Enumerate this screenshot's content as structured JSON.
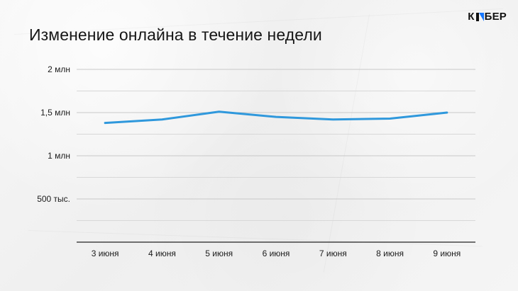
{
  "title": "Изменение онлайна в течение недели",
  "logo": {
    "text_before": "К",
    "text_after": "БЕР",
    "icon": "brand-mark-icon",
    "accent_color": "#1677ff"
  },
  "chart_data": {
    "type": "line",
    "title": "Изменение онлайна в течение недели",
    "categories": [
      "3 июня",
      "4 июня",
      "5 июня",
      "6 июня",
      "7 июня",
      "8 июня",
      "9 июня"
    ],
    "series": [
      {
        "values": [
          1380000,
          1420000,
          1510000,
          1450000,
          1420000,
          1430000,
          1500000
        ],
        "color": "#2f98dc"
      }
    ],
    "ylim": [
      0,
      2000000
    ],
    "y_ticks": [
      {
        "value": 500000,
        "label": "500 тыс."
      },
      {
        "value": 1000000,
        "label": "1 млн"
      },
      {
        "value": 1500000,
        "label": "1,5 млн"
      },
      {
        "value": 2000000,
        "label": "2 млн"
      }
    ],
    "grid": true,
    "minor_grid": true
  }
}
